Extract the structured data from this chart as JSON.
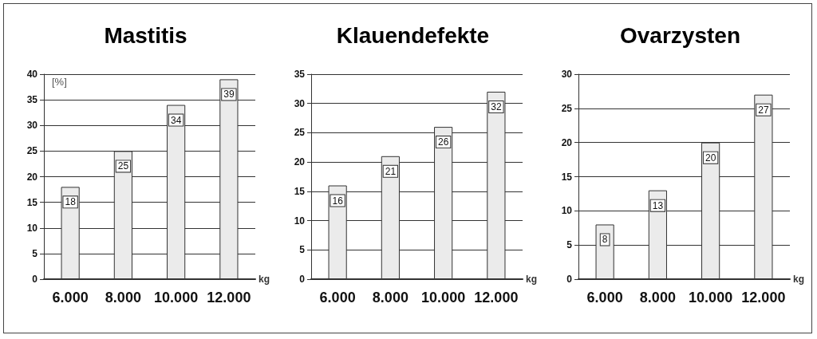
{
  "chart_data": [
    {
      "type": "bar",
      "title": "Mastitis",
      "xlabel": "kg",
      "ylabel": "[%]",
      "categories": [
        "6.000",
        "8.000",
        "10.000",
        "12.000"
      ],
      "values": [
        18,
        25,
        34,
        39
      ],
      "color": "#ebebeb",
      "ylim": [
        0,
        40
      ],
      "yticks": [
        0,
        5,
        10,
        15,
        20,
        25,
        30,
        35,
        40
      ],
      "grid": "y",
      "data_labels": true
    },
    {
      "type": "bar",
      "title": "Klauendefekte",
      "xlabel": "kg",
      "categories": [
        "6.000",
        "8.000",
        "10.000",
        "12.000"
      ],
      "values": [
        16,
        21,
        26,
        32
      ],
      "color": "#ebebeb",
      "ylim": [
        0,
        35
      ],
      "yticks": [
        0,
        5,
        10,
        15,
        20,
        25,
        30,
        35
      ],
      "grid": "y",
      "data_labels": true
    },
    {
      "type": "bar",
      "title": "Ovarzysten",
      "xlabel": "kg",
      "categories": [
        "6.000",
        "8.000",
        "10.000",
        "12.000"
      ],
      "values": [
        8,
        13,
        20,
        27
      ],
      "color": "#ebebeb",
      "ylim": [
        0,
        30
      ],
      "yticks": [
        0,
        5,
        10,
        15,
        20,
        25,
        30
      ],
      "grid": "y",
      "data_labels": true
    }
  ]
}
